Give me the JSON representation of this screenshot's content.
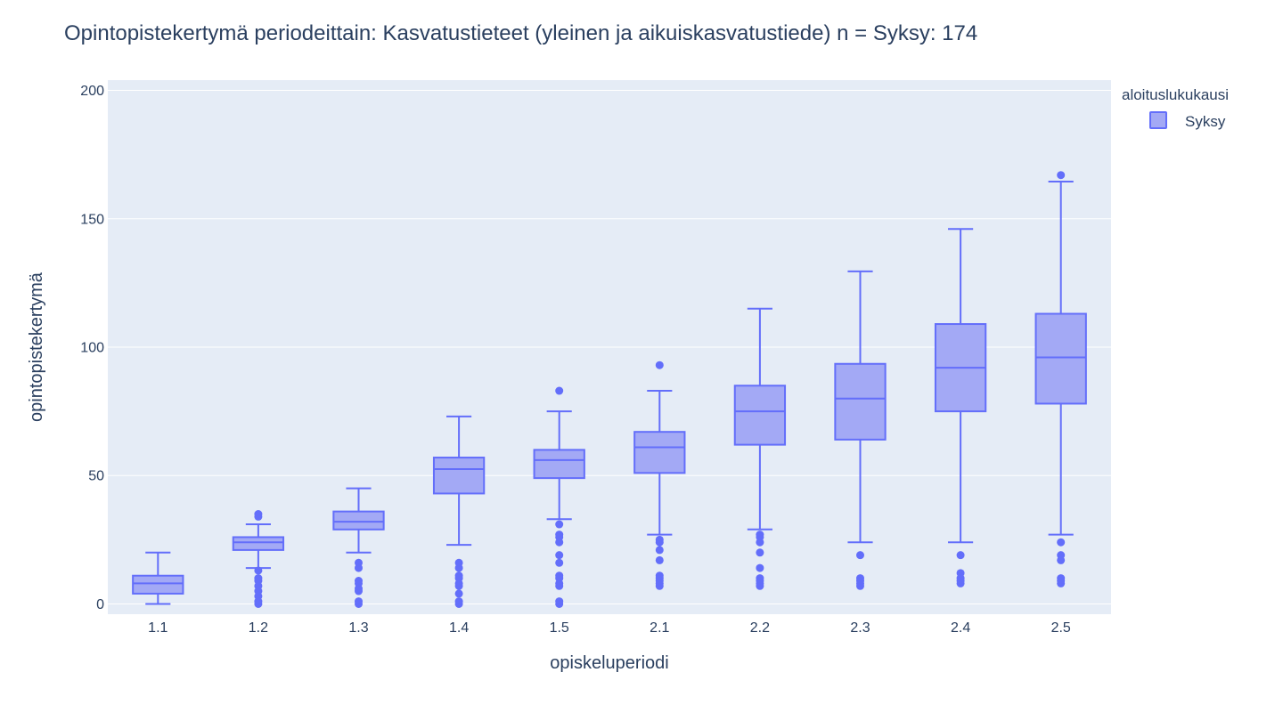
{
  "chart_data": {
    "type": "box",
    "title": "Opintopistekertymä periodeittain: Kasvatustieteet (yleinen ja aikuiskasvatustiede) n = Syksy: 174",
    "xlabel": "opiskeluperiodi",
    "ylabel": "opintopistekertymä",
    "ylim": [
      -4,
      204
    ],
    "yticks": [
      0,
      50,
      100,
      150,
      200
    ],
    "categories": [
      "1.1",
      "1.2",
      "1.3",
      "1.4",
      "1.5",
      "2.1",
      "2.2",
      "2.3",
      "2.4",
      "2.5"
    ],
    "grid": true,
    "legend": {
      "title": "aloituslukukausi",
      "placement": "top-right"
    },
    "colors": {
      "plot_bg": "#e5ecf6",
      "grid": "#ffffff",
      "series_line": "#636efa",
      "series_fill": "#a3a9f5"
    },
    "series": [
      {
        "name": "Syksy",
        "boxes": [
          {
            "category": "1.1",
            "min": 0,
            "q1": 4,
            "median": 8,
            "q3": 11,
            "max": 20,
            "outliers": []
          },
          {
            "category": "1.2",
            "min": 14,
            "q1": 21,
            "median": 24,
            "q3": 26,
            "max": 31,
            "outliers": [
              35,
              34,
              13,
              10,
              9,
              7,
              5,
              3,
              1,
              0
            ]
          },
          {
            "category": "1.3",
            "min": 20,
            "q1": 29,
            "median": 32,
            "q3": 36,
            "max": 45,
            "outliers": [
              16,
              14,
              9,
              8,
              6,
              5,
              1,
              0
            ]
          },
          {
            "category": "1.4",
            "min": 23,
            "q1": 43,
            "median": 52.5,
            "q3": 57,
            "max": 73,
            "outliers": [
              16,
              14,
              11,
              10,
              8,
              7,
              4,
              1,
              0
            ]
          },
          {
            "category": "1.5",
            "min": 33,
            "q1": 49,
            "median": 56,
            "q3": 60,
            "max": 75,
            "outliers": [
              83,
              31,
              27,
              26,
              24,
              19,
              16,
              11,
              10,
              8,
              7,
              1,
              0
            ]
          },
          {
            "category": "2.1",
            "min": 27,
            "q1": 51,
            "median": 61,
            "q3": 67,
            "max": 83,
            "outliers": [
              93,
              25,
              24,
              21,
              17,
              11,
              10,
              9,
              8,
              7
            ]
          },
          {
            "category": "2.2",
            "min": 29,
            "q1": 62,
            "median": 75,
            "q3": 85,
            "max": 115,
            "outliers": [
              27,
              26,
              24,
              20,
              14,
              10,
              9,
              8,
              7
            ]
          },
          {
            "category": "2.3",
            "min": 24,
            "q1": 64,
            "median": 80,
            "q3": 93.5,
            "max": 129.5,
            "outliers": [
              19,
              10,
              9,
              8,
              7
            ]
          },
          {
            "category": "2.4",
            "min": 24,
            "q1": 75,
            "median": 92,
            "q3": 109,
            "max": 146,
            "outliers": [
              19,
              12,
              10,
              9,
              8
            ]
          },
          {
            "category": "2.5",
            "min": 27,
            "q1": 78,
            "median": 96,
            "q3": 113,
            "max": 164.5,
            "outliers": [
              167,
              24,
              19,
              17,
              10,
              9,
              8
            ]
          }
        ]
      }
    ]
  }
}
